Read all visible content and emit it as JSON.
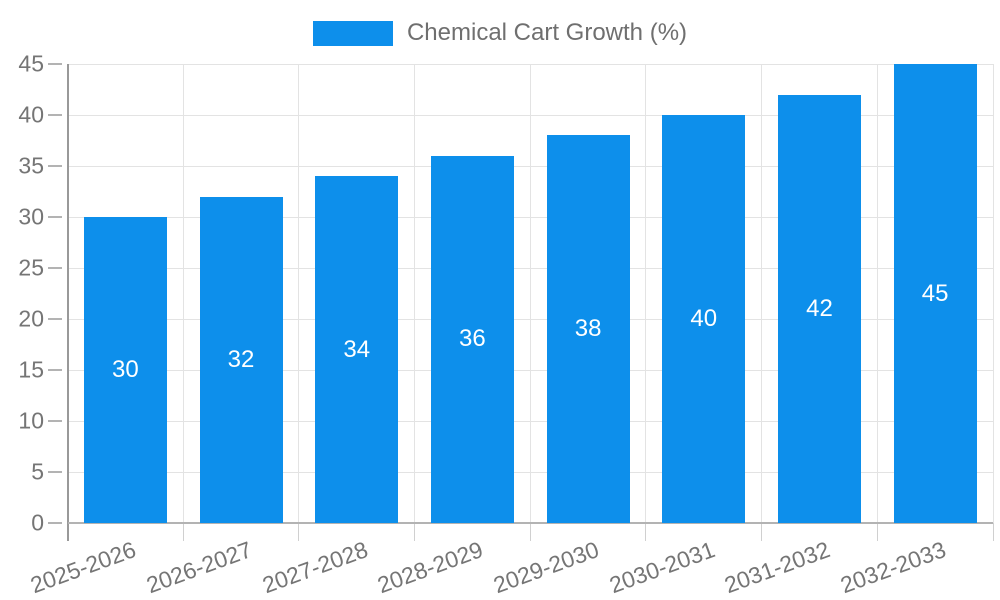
{
  "chart_data": {
    "type": "bar",
    "title": "",
    "xlabel": "",
    "ylabel": "",
    "legend": {
      "label": "Chemical Cart Growth (%)",
      "position": "top"
    },
    "categories": [
      "2025-2026",
      "2026-2027",
      "2027-2028",
      "2028-2029",
      "2029-2030",
      "2030-2031",
      "2031-2032",
      "2032-2033"
    ],
    "values": [
      30,
      32,
      34,
      36,
      38,
      40,
      42,
      45
    ],
    "value_labels": [
      "30",
      "32",
      "34",
      "36",
      "38",
      "40",
      "42",
      "45"
    ],
    "ylim": [
      0,
      45
    ],
    "yticks": [
      0,
      5,
      10,
      15,
      20,
      25,
      30,
      35,
      40,
      45
    ],
    "grid": true,
    "colors": {
      "bar": "#0d8feb",
      "gridline": "#e3e3e3",
      "y_axis_line": "#999999",
      "x_axis_line": "#b3b3b3",
      "tick_label": "#757575",
      "legend_text": "#6f6f6f",
      "value_label": "#ffffff",
      "background": "#ffffff"
    }
  }
}
